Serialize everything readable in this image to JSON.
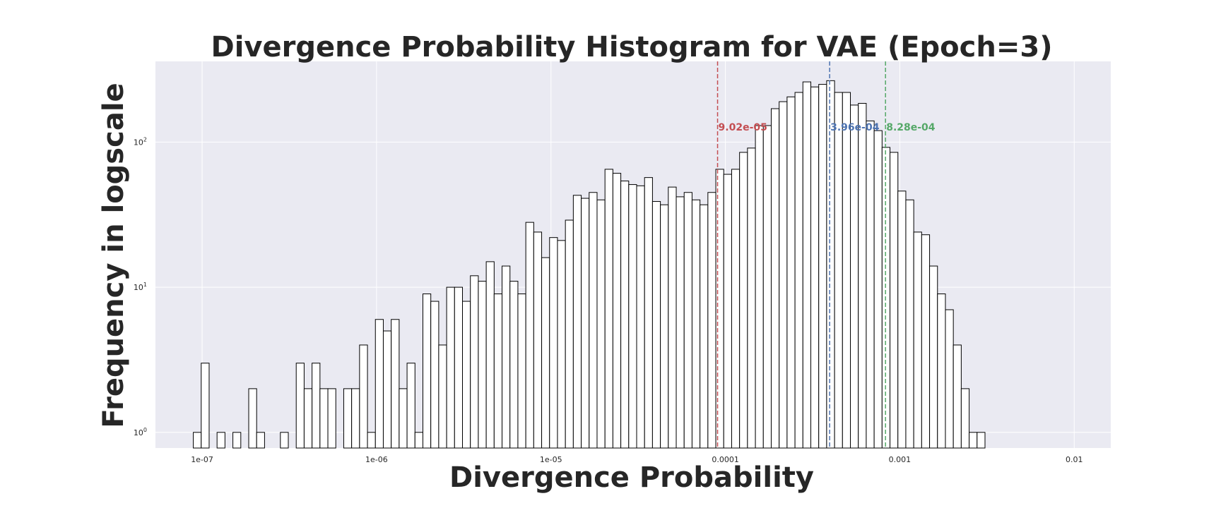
{
  "chart_data": {
    "type": "bar",
    "title": "Divergence Probability Histogram for VAE (Epoch=3)",
    "xlabel": "Divergence Probability",
    "ylabel": "Frequency in logscale",
    "x_scale": "log",
    "y_scale": "log",
    "xlim": [
      5.4e-08,
      0.0162
    ],
    "ylim": [
      0.78,
      360
    ],
    "x_ticks": [
      {
        "value": 1e-07,
        "label": "1e-07"
      },
      {
        "value": 1e-06,
        "label": "1e-06"
      },
      {
        "value": 1e-05,
        "label": "1e-05"
      },
      {
        "value": 0.0001,
        "label": "0.0001"
      },
      {
        "value": 0.001,
        "label": "0.001"
      },
      {
        "value": 0.01,
        "label": "0.01"
      }
    ],
    "y_ticks": [
      {
        "value": 1,
        "label": "10",
        "exp": "0"
      },
      {
        "value": 10,
        "label": "10",
        "exp": "1"
      },
      {
        "value": 100,
        "label": "10",
        "exp": "2"
      }
    ],
    "grid": true,
    "background": "#eaeaf2",
    "bar_fill": "#ffffff",
    "bar_edge": "#000000",
    "bins": {
      "first_left_edge": 8.9e-08,
      "log10_width": 0.04539
    },
    "counts": [
      1,
      3,
      0,
      1,
      0,
      1,
      0,
      2,
      1,
      0,
      0,
      1,
      0,
      3,
      2,
      3,
      2,
      2,
      0,
      2,
      2,
      4,
      1,
      6,
      5,
      6,
      2,
      3,
      1,
      9,
      8,
      4,
      10,
      10,
      8,
      12,
      11,
      15,
      9,
      14,
      11,
      9,
      28,
      24,
      16,
      22,
      21,
      29,
      43,
      41,
      45,
      40,
      65,
      61,
      54,
      51,
      50,
      57,
      39,
      37,
      49,
      42,
      45,
      40,
      37,
      45,
      65,
      60,
      65,
      85,
      91,
      130,
      130,
      170,
      190,
      205,
      220,
      260,
      240,
      250,
      265,
      220,
      220,
      180,
      185,
      140,
      120,
      92,
      85,
      46,
      40,
      24,
      23,
      14,
      9,
      7,
      4,
      2,
      1,
      1
    ],
    "vlines": [
      {
        "value": 9.02e-05,
        "label": "9.02e-05",
        "color": "#c44e52"
      },
      {
        "value": 0.000396,
        "label": "3.96e-04",
        "color": "#4c72b0"
      },
      {
        "value": 0.000828,
        "label": "8.28e-04",
        "color": "#55a868"
      }
    ]
  }
}
